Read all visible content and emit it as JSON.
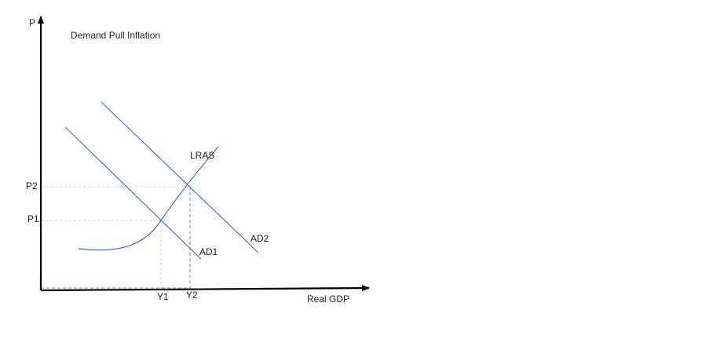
{
  "title": "Demand Pull Inflation",
  "axes": {
    "y_label": "P",
    "x_label": "Real GDP"
  },
  "curves": {
    "lras": "LRAS",
    "ad1": "AD1",
    "ad2": "AD2"
  },
  "levels": {
    "p1": "P1",
    "p2": "P2",
    "y1": "Y1",
    "y2": "Y2"
  }
}
